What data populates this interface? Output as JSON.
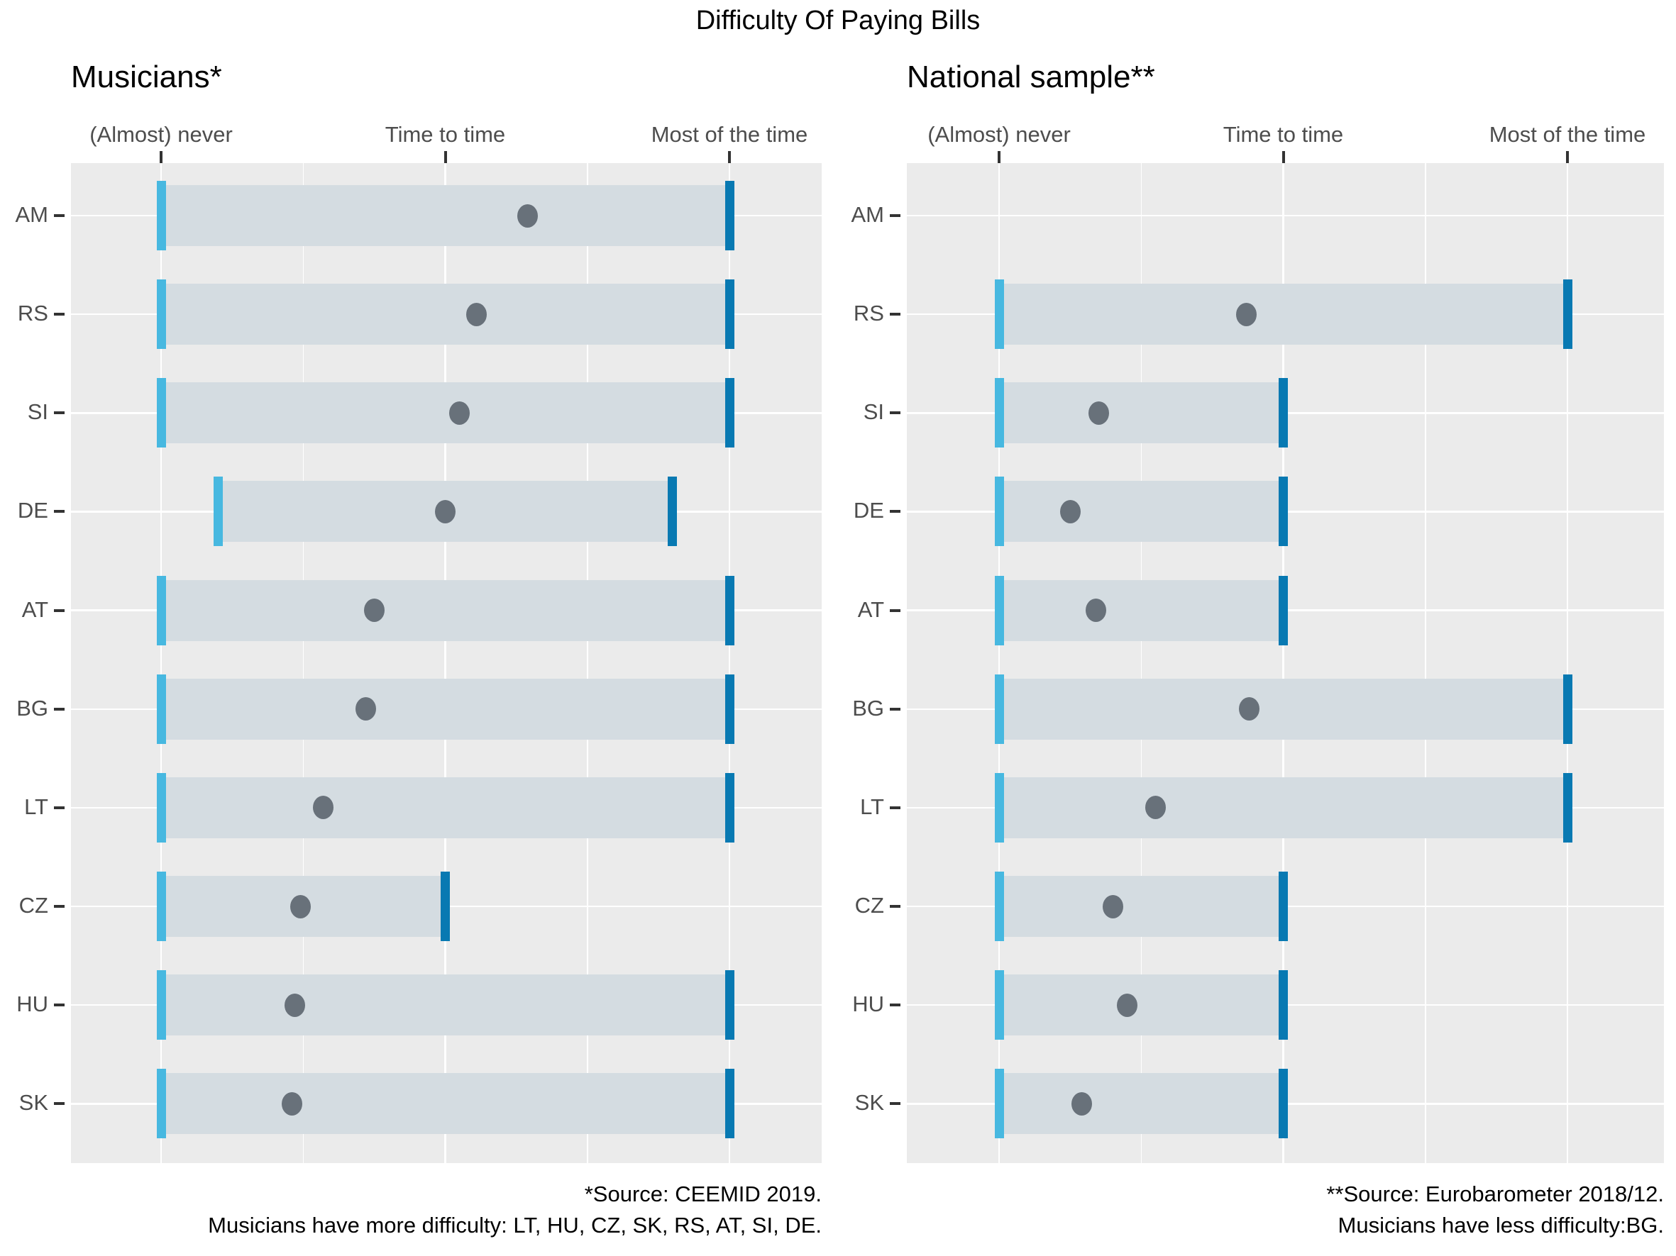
{
  "chart_data": {
    "type": "dumbbell-range",
    "title": "Difficulty Of Paying Bills",
    "x_axis": {
      "tick_labels": [
        "(Almost) never",
        "Time to time",
        "Most of the time"
      ],
      "tick_values": [
        1,
        2,
        3
      ],
      "grid": "major-and-minor, white on gray panel"
    },
    "categories": [
      "AM",
      "RS",
      "SI",
      "DE",
      "AT",
      "BG",
      "LT",
      "CZ",
      "HU",
      "SK"
    ],
    "marker_semantics": {
      "light_cap": "range minimum",
      "dark_cap": "range maximum",
      "gray_dot": "mean value"
    },
    "panels": [
      {
        "title": "Musicians*",
        "caption_line1": "*Source: CEEMID 2019.",
        "caption_line2": "Musicians have more difficulty: LT, HU, CZ, SK, RS, AT, SI, DE.",
        "series": [
          {
            "category": "AM",
            "min": 1.0,
            "max": 3.0,
            "mean": 2.29
          },
          {
            "category": "RS",
            "min": 1.0,
            "max": 3.0,
            "mean": 2.11
          },
          {
            "category": "SI",
            "min": 1.0,
            "max": 3.0,
            "mean": 2.05
          },
          {
            "category": "DE",
            "min": 1.2,
            "max": 2.8,
            "mean": 2.0
          },
          {
            "category": "AT",
            "min": 1.0,
            "max": 3.0,
            "mean": 1.75
          },
          {
            "category": "BG",
            "min": 1.0,
            "max": 3.0,
            "mean": 1.72
          },
          {
            "category": "LT",
            "min": 1.0,
            "max": 3.0,
            "mean": 1.57
          },
          {
            "category": "CZ",
            "min": 1.0,
            "max": 2.0,
            "mean": 1.49
          },
          {
            "category": "HU",
            "min": 1.0,
            "max": 3.0,
            "mean": 1.47
          },
          {
            "category": "SK",
            "min": 1.0,
            "max": 3.0,
            "mean": 1.46
          }
        ]
      },
      {
        "title": "National sample**",
        "caption_line1": "**Source: Eurobarometer 2018/12.",
        "caption_line2": "Musicians have less difficulty:BG.",
        "series": [
          {
            "category": "AM",
            "min": null,
            "max": null,
            "mean": null
          },
          {
            "category": "RS",
            "min": 1.0,
            "max": 3.0,
            "mean": 1.87
          },
          {
            "category": "SI",
            "min": 1.0,
            "max": 2.0,
            "mean": 1.35
          },
          {
            "category": "DE",
            "min": 1.0,
            "max": 2.0,
            "mean": 1.25
          },
          {
            "category": "AT",
            "min": 1.0,
            "max": 2.0,
            "mean": 1.34
          },
          {
            "category": "BG",
            "min": 1.0,
            "max": 3.0,
            "mean": 1.88
          },
          {
            "category": "LT",
            "min": 1.0,
            "max": 3.0,
            "mean": 1.55
          },
          {
            "category": "CZ",
            "min": 1.0,
            "max": 2.0,
            "mean": 1.4
          },
          {
            "category": "HU",
            "min": 1.0,
            "max": 2.0,
            "mean": 1.45
          },
          {
            "category": "SK",
            "min": 1.0,
            "max": 2.0,
            "mean": 1.29
          }
        ]
      }
    ],
    "colors": {
      "panel_bg": "#EBEBEB",
      "gridline": "#FFFFFF",
      "range_band": "#D4DCE1",
      "min_cap": "#47B8E0",
      "max_cap": "#0879B2",
      "mean_dot": "#68717A",
      "axis_text": "#4D4D4D",
      "title_text": "#000000"
    }
  }
}
